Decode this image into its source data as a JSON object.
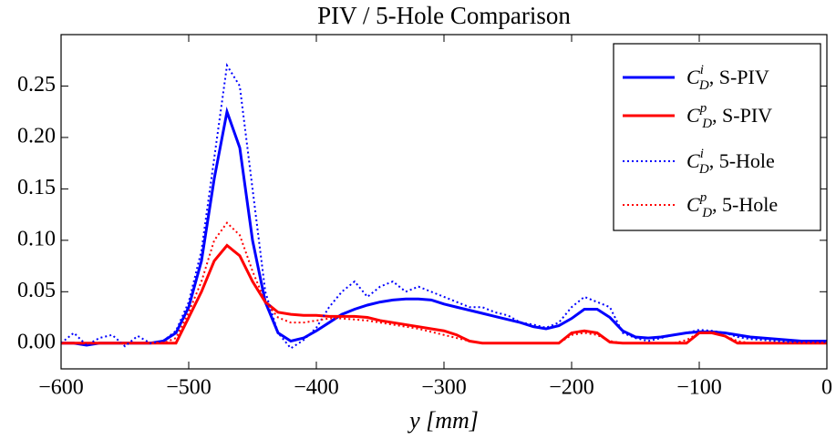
{
  "chart_data": {
    "type": "line",
    "title": "PIV / 5-Hole Comparison",
    "x_label": "y [mm]",
    "x": [
      -600,
      -590,
      -580,
      -570,
      -560,
      -550,
      -540,
      -530,
      -520,
      -510,
      -500,
      -490,
      -480,
      -470,
      -460,
      -450,
      -440,
      -430,
      -420,
      -410,
      -400,
      -390,
      -380,
      -370,
      -360,
      -350,
      -340,
      -330,
      -320,
      -310,
      -300,
      -290,
      -280,
      -270,
      -260,
      -250,
      -240,
      -230,
      -220,
      -210,
      -200,
      -190,
      -180,
      -170,
      -160,
      -150,
      -140,
      -130,
      -120,
      -110,
      -100,
      -90,
      -80,
      -70,
      -60,
      -50,
      -40,
      -30,
      -20,
      -10,
      0
    ],
    "series": [
      {
        "name": "C_D^i, S-PIV",
        "color": "#0000ff",
        "dash": "solid",
        "values": [
          0,
          0,
          -0.002,
          0,
          0,
          0,
          0,
          0,
          0.002,
          0.01,
          0.035,
          0.08,
          0.16,
          0.225,
          0.19,
          0.1,
          0.04,
          0.01,
          0.002,
          0.005,
          0.012,
          0.02,
          0.028,
          0.033,
          0.037,
          0.04,
          0.042,
          0.043,
          0.043,
          0.042,
          0.038,
          0.035,
          0.032,
          0.029,
          0.026,
          0.023,
          0.02,
          0.016,
          0.014,
          0.017,
          0.024,
          0.033,
          0.033,
          0.025,
          0.012,
          0.006,
          0.005,
          0.006,
          0.008,
          0.01,
          0.011,
          0.011,
          0.01,
          0.008,
          0.006,
          0.005,
          0.004,
          0.003,
          0.002,
          0.002,
          0.002
        ]
      },
      {
        "name": "C_D^p, S-PIV",
        "color": "#ff0000",
        "dash": "solid",
        "values": [
          0,
          0,
          0,
          0,
          0,
          0,
          0,
          0,
          0,
          0,
          0.025,
          0.05,
          0.08,
          0.095,
          0.085,
          0.06,
          0.04,
          0.03,
          0.028,
          0.027,
          0.027,
          0.026,
          0.026,
          0.026,
          0.025,
          0.022,
          0.02,
          0.018,
          0.016,
          0.014,
          0.012,
          0.008,
          0.002,
          0,
          0,
          0,
          0,
          0,
          0,
          0,
          0.01,
          0.012,
          0.01,
          0.001,
          0,
          0,
          0,
          0,
          0,
          0,
          0.01,
          0.01,
          0.007,
          0,
          0,
          0,
          0,
          0,
          0,
          0,
          0
        ]
      },
      {
        "name": "C_D^i, 5-Hole",
        "color": "#0000ff",
        "dash": "dotted",
        "values": [
          0,
          0.01,
          -0.002,
          0.005,
          0.008,
          -0.003,
          0.007,
          0,
          0.002,
          0.012,
          0.04,
          0.09,
          0.18,
          0.27,
          0.25,
          0.15,
          0.05,
          0.01,
          -0.005,
          0.003,
          0.015,
          0.035,
          0.05,
          0.06,
          0.045,
          0.055,
          0.06,
          0.05,
          0.055,
          0.05,
          0.045,
          0.04,
          0.035,
          0.035,
          0.03,
          0.027,
          0.02,
          0.018,
          0.015,
          0.02,
          0.035,
          0.045,
          0.04,
          0.035,
          0.01,
          0.005,
          0.002,
          0.005,
          0.008,
          0.01,
          0.013,
          0.012,
          0.01,
          0.006,
          0.004,
          0.003,
          0.002,
          0.001,
          0.001,
          0.001,
          0.001
        ]
      },
      {
        "name": "C_D^p, 5-Hole",
        "color": "#ff0000",
        "dash": "dotted",
        "values": [
          0,
          0,
          0,
          0,
          0,
          0,
          0,
          0,
          0,
          0.005,
          0.03,
          0.06,
          0.1,
          0.117,
          0.105,
          0.07,
          0.04,
          0.025,
          0.02,
          0.02,
          0.022,
          0.024,
          0.024,
          0.023,
          0.022,
          0.02,
          0.018,
          0.016,
          0.014,
          0.011,
          0.008,
          0.005,
          0.002,
          0,
          0,
          0,
          0,
          0,
          0,
          0,
          0.008,
          0.01,
          0.008,
          0.002,
          0,
          0,
          0,
          0,
          0,
          0.003,
          0.01,
          0.011,
          0.007,
          0.002,
          0,
          0,
          0,
          0,
          0,
          0,
          0
        ]
      }
    ],
    "xlim": [
      -600,
      0
    ],
    "ylim": [
      -0.025,
      0.3
    ],
    "xticks": [
      {
        "value": -600,
        "label": "−600"
      },
      {
        "value": -500,
        "label": "−500"
      },
      {
        "value": -400,
        "label": "−400"
      },
      {
        "value": -300,
        "label": "−300"
      },
      {
        "value": -200,
        "label": "−200"
      },
      {
        "value": -100,
        "label": "−100"
      },
      0
    ],
    "yticks": [
      {
        "value": 0,
        "label": "0.00"
      },
      {
        "value": 0.05,
        "label": "0.05"
      },
      {
        "value": 0.1,
        "label": "0.10"
      },
      {
        "value": 0.15,
        "label": "0.15"
      },
      {
        "value": 0.2,
        "label": "0.20"
      },
      {
        "value": 0.25,
        "label": "0.25"
      }
    ],
    "grid": false,
    "legend": "upper right"
  }
}
